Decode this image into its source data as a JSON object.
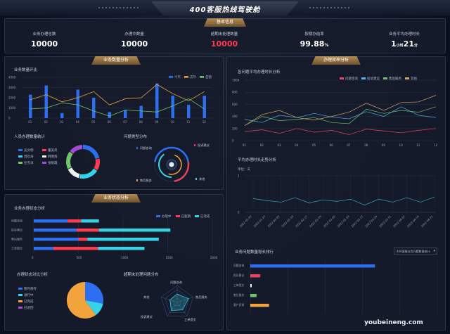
{
  "header": {
    "title": "400客服热线驾驶舱"
  },
  "sections": {
    "basic": "基本信息",
    "business_volume": "业务数量分析",
    "efficiency": "办理效率分析",
    "status": "业务状态分析"
  },
  "kpis": [
    {
      "label": "业务办理总数",
      "value": "10000",
      "color": "#ffffff"
    },
    {
      "label": "办理中数量",
      "value": "10000",
      "color": "#ffffff"
    },
    {
      "label": "超期未处理数量",
      "value": "10000",
      "color": "#ff3b4f"
    },
    {
      "label": "按期办结率",
      "value": "99.88",
      "unit": "%",
      "color": "#ffffff"
    },
    {
      "label": "业务平均办理时长",
      "value": "1",
      "unit1": "小时",
      "value2": "21",
      "unit2": "分",
      "color": "#ffffff"
    }
  ],
  "trend": {
    "title": "业务数量环比",
    "legend": [
      "今年",
      "去年",
      "差额"
    ],
    "colors": [
      "#2e6ff2",
      "#e8a33d",
      "#6fc36b"
    ],
    "yticks": [
      "0",
      "1000",
      "2000",
      "3000",
      "4000"
    ],
    "xticks": [
      "01",
      "02",
      "03",
      "04",
      "05",
      "06",
      "07",
      "08",
      "09",
      "10",
      "11",
      "12"
    ],
    "chart_data": {
      "type": "bar",
      "categories": [
        "01",
        "02",
        "03",
        "04",
        "05",
        "06",
        "07",
        "08",
        "09",
        "10",
        "11",
        "12"
      ],
      "series": [
        {
          "name": "今年",
          "values": [
            2300,
            3200,
            500,
            2800,
            2000,
            600,
            800,
            1200,
            3400,
            2200,
            1300,
            2200
          ]
        },
        {
          "name": "去年",
          "values": [
            1800,
            2300,
            1600,
            2000,
            2600,
            1300,
            1900,
            2000,
            3300,
            2400,
            1700,
            2600
          ]
        },
        {
          "name": "差额",
          "values": [
            900,
            1000,
            1500,
            1300,
            700,
            200,
            800,
            700,
            600,
            1200,
            1900,
            900
          ]
        }
      ],
      "ylim": [
        0,
        4000
      ]
    }
  },
  "staff": {
    "title": "人员办理数量统计",
    "items": [
      "吴文明",
      "董美英",
      "周欢涛",
      "韩明辉",
      "任杰洋",
      "张银霞"
    ],
    "colors": [
      "#2e6ff2",
      "#ff3b4f",
      "#35d3e8",
      "#f0f0f0",
      "#6fc36b",
      "#a34bd6"
    ],
    "chart_data": {
      "type": "pie",
      "labels": [
        "吴文明",
        "董美英",
        "周欢涛",
        "韩明辉",
        "任杰洋",
        "张银霞"
      ],
      "values": [
        22,
        12,
        20,
        14,
        18,
        14
      ]
    }
  },
  "issue": {
    "title": "问题类型分布",
    "labels": [
      "问题咨询",
      "投诉建议",
      "售后服务",
      "其他"
    ]
  },
  "status": {
    "title": "业务办理状态分析",
    "legend": [
      "办理中",
      "已超期",
      "已完成"
    ],
    "colors": [
      "#2e6ff2",
      "#ff3b4f",
      "#35d3e8"
    ],
    "categories": [
      "问题咨询",
      "投诉建议",
      "售后服务",
      "工单提交"
    ],
    "xticks": [
      "0",
      "500",
      "1000",
      "1500",
      "2000"
    ],
    "chart_data": {
      "type": "bar",
      "categories": [
        "问题咨询",
        "投诉建议",
        "售后服务",
        "工单提交"
      ],
      "series": [
        {
          "name": "办理中",
          "values": [
            380,
            480,
            500,
            220
          ]
        },
        {
          "name": "已超期",
          "values": [
            150,
            250,
            100,
            500
          ]
        },
        {
          "name": "已完成",
          "values": [
            200,
            800,
            800,
            520
          ]
        }
      ],
      "xlim": [
        0,
        2000
      ]
    }
  },
  "ratio": {
    "title": "办理状态对比分析",
    "items": [
      "暂时保存",
      "进行中",
      "已完成",
      "已退回"
    ],
    "colors": [
      "#2e6ff2",
      "#35d3e8",
      "#f2a33d",
      "#a34bd6"
    ],
    "chart_data": {
      "type": "pie",
      "labels": [
        "暂时保存",
        "进行中",
        "已完成",
        "已退回"
      ],
      "values": [
        28,
        12,
        60,
        0
      ]
    }
  },
  "radar": {
    "title": "超期未处理问题分布",
    "labels": [
      "问题咨询",
      "售后服务",
      "工单提交",
      "投诉建议",
      "其他"
    ]
  },
  "avgline": {
    "title": "各问题平均办理时长分析",
    "legend": [
      "问题咨询",
      "投诉建议",
      "售后服务",
      "其他"
    ],
    "colors": [
      "#e8445c",
      "#4db3f0",
      "#6fc36b",
      "#d6a468"
    ],
    "yticks": [
      "0",
      "200",
      "400",
      "600",
      "800",
      "1000"
    ],
    "xticks": [
      "01",
      "02",
      "03",
      "04",
      "05",
      "06",
      "07",
      "08",
      "09",
      "10",
      "11",
      "12"
    ],
    "chart_data": {
      "type": "line",
      "x": [
        "01",
        "02",
        "03",
        "04",
        "05",
        "06",
        "07",
        "08",
        "09",
        "10",
        "11",
        "12"
      ],
      "series": [
        {
          "name": "问题咨询",
          "values": [
            150,
            180,
            120,
            200,
            140,
            170,
            100,
            190,
            160,
            130,
            170,
            200
          ]
        },
        {
          "name": "投诉建议",
          "values": [
            350,
            300,
            420,
            380,
            450,
            390,
            360,
            480,
            400,
            560,
            420,
            380
          ]
        },
        {
          "name": "售后服务",
          "values": [
            250,
            400,
            330,
            350,
            380,
            300,
            280,
            520,
            450,
            500,
            470,
            560
          ]
        },
        {
          "name": "其他",
          "values": [
            250,
            430,
            500,
            380,
            340,
            400,
            470,
            620,
            500,
            630,
            640,
            750
          ]
        }
      ],
      "ylim": [
        0,
        1000
      ]
    }
  },
  "trend2": {
    "title": "平均办理时长走势分析",
    "unit": "单位：天",
    "yticks": [
      "0",
      "1"
    ],
    "xticks": [
      "2022-01-20",
      "2022-01-27",
      "2022-02-03",
      "2022-02-10",
      "2022-02-17",
      "2022-02-24",
      "2022-03-03",
      "2022-03-10",
      "2022-03-17",
      "2022-03-24",
      "2022-03-31",
      "2022-04-07",
      "2022-04-14",
      "2022-04-21"
    ],
    "chart_data": {
      "type": "line",
      "x": [
        "2022-01-20",
        "2022-01-27",
        "2022-02-03",
        "2022-02-10",
        "2022-02-17",
        "2022-02-24",
        "2022-03-03",
        "2022-03-10",
        "2022-03-17",
        "2022-03-24",
        "2022-03-31",
        "2022-04-07",
        "2022-04-14",
        "2022-04-21"
      ],
      "series": [
        {
          "name": "",
          "values": [
            0.38,
            0.32,
            0.28,
            0.4,
            0.26,
            0.34,
            0.3,
            0.36,
            0.2,
            0.36,
            0.28,
            0.4,
            0.28,
            0.42
          ]
        }
      ],
      "ylim": [
        0,
        1
      ]
    }
  },
  "growth": {
    "title": "业务问题数量增长排行",
    "dropdown": "400客服业务问题数量统计",
    "categories": [
      "问题咨询",
      "投诉建议",
      "工单提交",
      "售后服务",
      "客户反馈"
    ],
    "colors": [
      "#2e6ff2",
      "#e8445c",
      "#f0f0f0",
      "#6fc36b",
      "#f2a33d"
    ],
    "chart_data": {
      "type": "bar",
      "categories": [
        "问题咨询",
        "投诉建议",
        "工单提交",
        "售后服务",
        "客户反馈"
      ],
      "values": [
        1000,
        80,
        10,
        50,
        150
      ],
      "xlim": [
        0,
        1500
      ]
    }
  },
  "watermark": "youbeineng.com"
}
